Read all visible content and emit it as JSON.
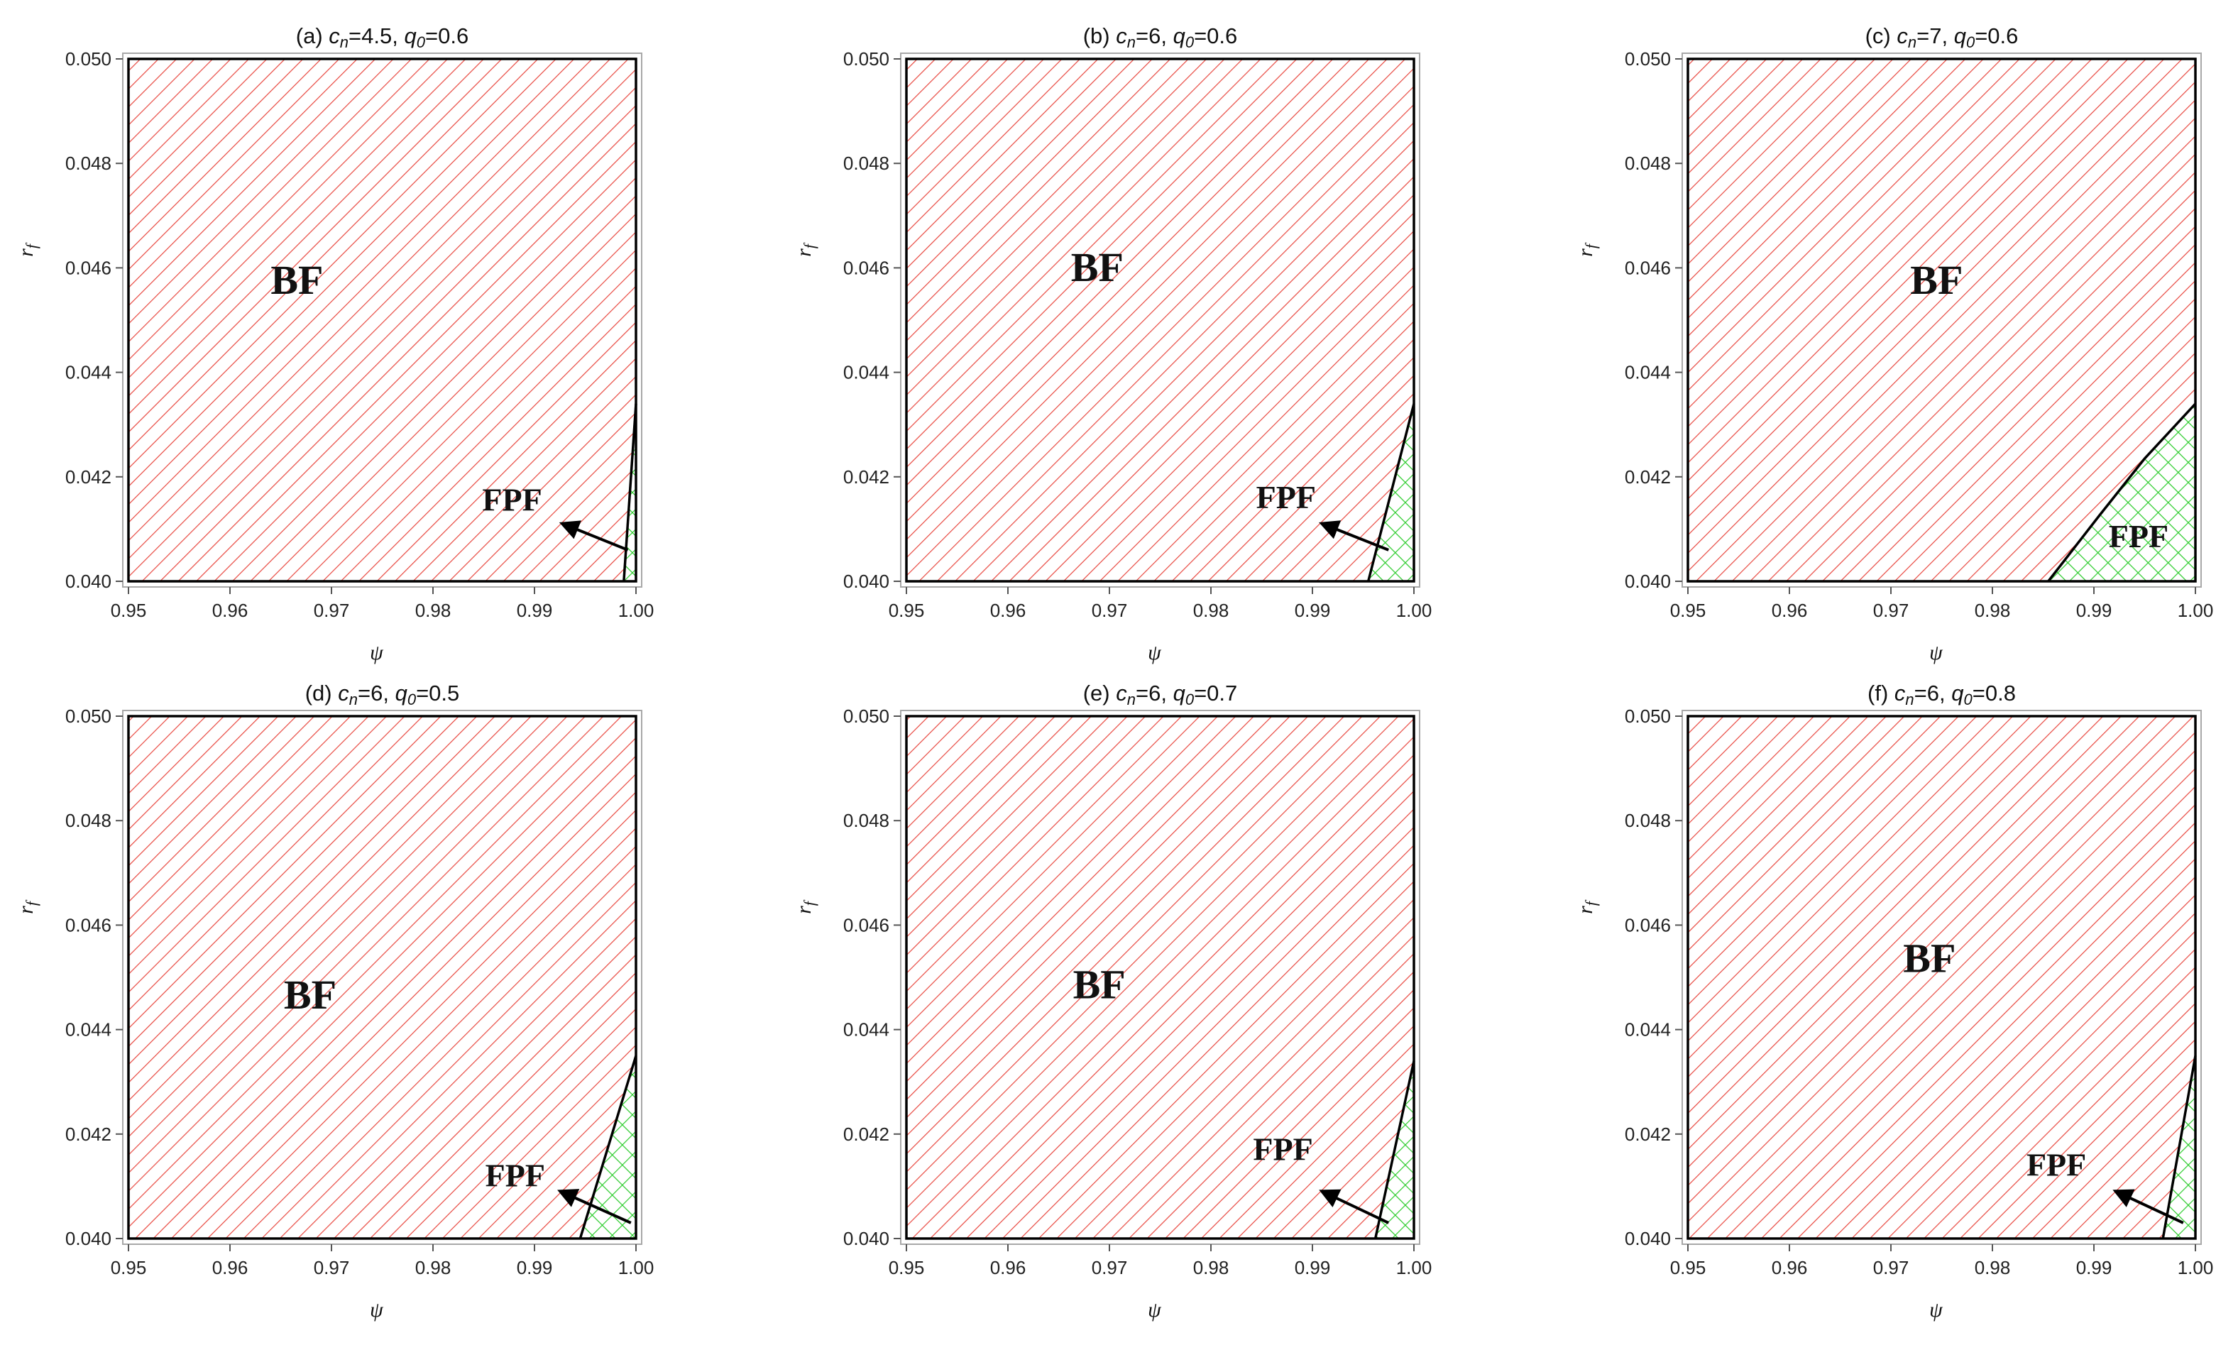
{
  "colors": {
    "bf_hatch": "#e8473f",
    "fpf_hatch": "#2ecc2e",
    "boundary": "#000000",
    "frame": "#a8a8a8"
  },
  "chart_data": [
    {
      "type": "region",
      "title": "(a) c_n=4.5, q_0=0.6",
      "title_parts": [
        "(a) ",
        "c",
        "n",
        "=4.5, ",
        "q",
        "0",
        "=0.6"
      ],
      "xlabel": "ψ",
      "ylabel": "r_f",
      "ylabel_main": "r",
      "ylabel_sub": "f",
      "xlim": [
        0.95,
        1.0
      ],
      "ylim": [
        0.04,
        0.05
      ],
      "xticks": [
        "0.95",
        "0.96",
        "0.97",
        "0.98",
        "0.99",
        "1.00"
      ],
      "yticks": [
        "0.040",
        "0.042",
        "0.044",
        "0.046",
        "0.048",
        "0.050"
      ],
      "boundary": [
        [
          0.9988,
          0.04
        ],
        [
          1.0,
          0.0434
        ]
      ],
      "regions": [
        {
          "label": "BF",
          "label_pos": [
            0.9666,
            0.0455
          ],
          "label_size": 58
        },
        {
          "label": "FPF",
          "label_pos": [
            0.9878,
            0.04135
          ],
          "label_size": 46,
          "arrow": {
            "from": [
              0.9992,
              0.0406
            ],
            "to": [
              0.9928,
              0.0411
            ]
          }
        }
      ]
    },
    {
      "type": "region",
      "title": "(b) c_n=6, q_0=0.6",
      "title_parts": [
        "(b) ",
        "c",
        "n",
        "=6, ",
        "q",
        "0",
        "=0.6"
      ],
      "xlabel": "ψ",
      "ylabel": "r_f",
      "ylabel_main": "r",
      "ylabel_sub": "f",
      "xlim": [
        0.95,
        1.0
      ],
      "ylim": [
        0.04,
        0.05
      ],
      "xticks": [
        "0.95",
        "0.96",
        "0.97",
        "0.98",
        "0.99",
        "1.00"
      ],
      "yticks": [
        "0.040",
        "0.042",
        "0.044",
        "0.046",
        "0.048",
        "0.050"
      ],
      "boundary": [
        [
          0.9955,
          0.04
        ],
        [
          1.0,
          0.0434
        ]
      ],
      "regions": [
        {
          "label": "BF",
          "label_pos": [
            0.9688,
            0.04575
          ],
          "label_size": 58
        },
        {
          "label": "FPF",
          "label_pos": [
            0.9874,
            0.0414
          ],
          "label_size": 46,
          "arrow": {
            "from": [
              0.9975,
              0.0406
            ],
            "to": [
              0.991,
              0.0411
            ]
          }
        }
      ]
    },
    {
      "type": "region",
      "title": "(c) c_n=7, q_0=0.6",
      "title_parts": [
        "(c) ",
        "c",
        "n",
        "=7, ",
        "q",
        "0",
        "=0.6"
      ],
      "xlabel": "ψ",
      "ylabel": "r_f",
      "ylabel_main": "r",
      "ylabel_sub": "f",
      "xlim": [
        0.95,
        1.0
      ],
      "ylim": [
        0.04,
        0.05
      ],
      "xticks": [
        "0.95",
        "0.96",
        "0.97",
        "0.98",
        "0.99",
        "1.00"
      ],
      "yticks": [
        "0.040",
        "0.042",
        "0.044",
        "0.046",
        "0.048",
        "0.050"
      ],
      "boundary": [
        [
          0.9855,
          0.04
        ],
        [
          0.9905,
          0.04125
        ],
        [
          0.995,
          0.04235
        ],
        [
          1.0,
          0.0434
        ]
      ],
      "regions": [
        {
          "label": "BF",
          "label_pos": [
            0.9745,
            0.0455
          ],
          "label_size": 58
        },
        {
          "label": "FPF",
          "label_pos": [
            0.9944,
            0.04065
          ],
          "label_size": 46
        }
      ]
    },
    {
      "type": "region",
      "title": "(d) c_n=6, q_0=0.5",
      "title_parts": [
        "(d) ",
        "c",
        "n",
        "=6, ",
        "q",
        "0",
        "=0.5"
      ],
      "xlabel": "ψ",
      "ylabel": "r_f",
      "ylabel_main": "r",
      "ylabel_sub": "f",
      "xlim": [
        0.95,
        1.0
      ],
      "ylim": [
        0.04,
        0.05
      ],
      "xticks": [
        "0.95",
        "0.96",
        "0.97",
        "0.98",
        "0.99",
        "1.00"
      ],
      "yticks": [
        "0.040",
        "0.042",
        "0.044",
        "0.046",
        "0.048",
        "0.050"
      ],
      "boundary": [
        [
          0.9945,
          0.04
        ],
        [
          1.0,
          0.0435
        ]
      ],
      "regions": [
        {
          "label": "BF",
          "label_pos": [
            0.9679,
            0.0444
          ],
          "label_size": 58
        },
        {
          "label": "FPF",
          "label_pos": [
            0.9881,
            0.041
          ],
          "label_size": 46,
          "arrow": {
            "from": [
              0.9995,
              0.0403
            ],
            "to": [
              0.9926,
              0.0409
            ]
          }
        }
      ]
    },
    {
      "type": "region",
      "title": "(e) c_n=6, q_0=0.7",
      "title_parts": [
        "(e) ",
        "c",
        "n",
        "=6, ",
        "q",
        "0",
        "=0.7"
      ],
      "xlabel": "ψ",
      "ylabel": "r_f",
      "ylabel_main": "r",
      "ylabel_sub": "f",
      "xlim": [
        0.95,
        1.0
      ],
      "ylim": [
        0.04,
        0.05
      ],
      "xticks": [
        "0.95",
        "0.96",
        "0.97",
        "0.98",
        "0.99",
        "1.00"
      ],
      "yticks": [
        "0.040",
        "0.042",
        "0.044",
        "0.046",
        "0.048",
        "0.050"
      ],
      "boundary": [
        [
          0.9962,
          0.04
        ],
        [
          1.0,
          0.0434
        ]
      ],
      "regions": [
        {
          "label": "BF",
          "label_pos": [
            0.969,
            0.0446
          ],
          "label_size": 58
        },
        {
          "label": "FPF",
          "label_pos": [
            0.9871,
            0.0415
          ],
          "label_size": 46,
          "arrow": {
            "from": [
              0.9975,
              0.0403
            ],
            "to": [
              0.991,
              0.0409
            ]
          }
        }
      ]
    },
    {
      "type": "region",
      "title": "(f) c_n=6, q_0=0.8",
      "title_parts": [
        "(f) ",
        "c",
        "n",
        "=6, ",
        "q",
        "0",
        "=0.8"
      ],
      "xlabel": "ψ",
      "ylabel": "r_f",
      "ylabel_main": "r",
      "ylabel_sub": "f",
      "xlim": [
        0.95,
        1.0
      ],
      "ylim": [
        0.04,
        0.05
      ],
      "xticks": [
        "0.95",
        "0.96",
        "0.97",
        "0.98",
        "0.99",
        "1.00"
      ],
      "yticks": [
        "0.040",
        "0.042",
        "0.044",
        "0.046",
        "0.048",
        "0.050"
      ],
      "boundary": [
        [
          0.9968,
          0.04
        ],
        [
          1.0,
          0.0435
        ]
      ],
      "regions": [
        {
          "label": "BF",
          "label_pos": [
            0.9738,
            0.0451
          ],
          "label_size": 58
        },
        {
          "label": "FPF",
          "label_pos": [
            0.9863,
            0.0412
          ],
          "label_size": 46,
          "arrow": {
            "from": [
              0.9988,
              0.0403
            ],
            "to": [
              0.9922,
              0.0409
            ]
          }
        }
      ]
    }
  ]
}
